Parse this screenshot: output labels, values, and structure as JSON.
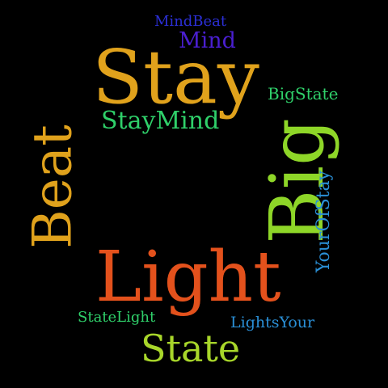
{
  "background": "#000000",
  "words": [
    {
      "text": "MindBeat",
      "color": "#2b2fd6",
      "weight": 1
    },
    {
      "text": "Mind",
      "color": "#4a1fd0",
      "weight": 2
    },
    {
      "text": "Stay",
      "color": "#e0a21c",
      "weight": 10
    },
    {
      "text": "BigState",
      "color": "#2fd06a",
      "weight": 2
    },
    {
      "text": "StayMind",
      "color": "#2fd06a",
      "weight": 3
    },
    {
      "text": "Beat",
      "color": "#e0a21c",
      "weight": 7
    },
    {
      "text": "Big",
      "color": "#8ed628",
      "weight": 8
    },
    {
      "text": "YourOfStay",
      "color": "#2a8fd6",
      "weight": 2
    },
    {
      "text": "Light",
      "color": "#e3511c",
      "weight": 10
    },
    {
      "text": "StateLight",
      "color": "#2fd06a",
      "weight": 1
    },
    {
      "text": "LightsYour",
      "color": "#2a8fd6",
      "weight": 1
    },
    {
      "text": "State",
      "color": "#a8d62a",
      "weight": 5
    }
  ]
}
